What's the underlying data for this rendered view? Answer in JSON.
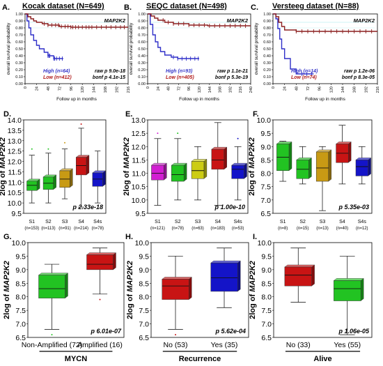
{
  "colors": {
    "high": "#2e2ec8",
    "low": "#8b1e1e",
    "high_text": "#3535c8",
    "low_text": "#b01818",
    "green": "#22c322",
    "red": "#c81414",
    "blue": "#1414c8",
    "olive": "#c89a14",
    "magenta": "#d21ed2",
    "yellow": "#cccc14",
    "cyan_line": "#9ee8f0"
  },
  "chart_data": [
    {
      "type": "line",
      "panel": "A.",
      "title": "Kocak dataset (N=649)",
      "gene": "MAP2K2",
      "ylabel": "overall survival probability",
      "xlabel": "Follow up in months",
      "xticks": [
        "0",
        "24",
        "48",
        "72",
        "96",
        "120",
        "144",
        "168",
        "192",
        "216"
      ],
      "yticks": [
        "0.00",
        "0.10",
        "0.20",
        "0.30",
        "0.40",
        "0.50",
        "0.60",
        "0.70",
        "0.80",
        "0.90",
        "1.00"
      ],
      "xlim": [
        0,
        216
      ],
      "ylim": [
        0,
        1
      ],
      "series": [
        {
          "name": "High (n=64)",
          "key": "high",
          "points": [
            [
              0,
              1.0
            ],
            [
              4,
              0.9
            ],
            [
              8,
              0.8
            ],
            [
              12,
              0.7
            ],
            [
              18,
              0.62
            ],
            [
              24,
              0.55
            ],
            [
              30,
              0.5
            ],
            [
              40,
              0.45
            ],
            [
              48,
              0.4
            ],
            [
              60,
              0.36
            ],
            [
              80,
              0.36
            ]
          ],
          "censor": [
            48,
            50,
            52,
            60,
            62,
            66,
            72,
            78
          ]
        },
        {
          "name": "Low (n=412)",
          "key": "low",
          "points": [
            [
              0,
              1.0
            ],
            [
              6,
              0.96
            ],
            [
              12,
              0.93
            ],
            [
              18,
              0.9
            ],
            [
              24,
              0.88
            ],
            [
              36,
              0.86
            ],
            [
              48,
              0.84
            ],
            [
              72,
              0.82
            ],
            [
              96,
              0.81
            ],
            [
              216,
              0.81
            ]
          ],
          "censor": [
            40,
            48,
            56,
            64,
            70,
            76,
            84,
            90,
            96,
            100,
            106,
            112,
            120,
            128,
            134,
            140,
            150,
            160,
            170,
            180,
            190,
            200,
            208
          ]
        }
      ],
      "legend": [
        {
          "label": "High (n=64)",
          "stat": "raw p 9.0e-18",
          "key": "high"
        },
        {
          "label": "Low (n=412)",
          "stat": "bonf p 4.1e-15",
          "key": "low"
        }
      ]
    },
    {
      "type": "line",
      "panel": "B.",
      "title": "SEQC dataset (N=498)",
      "gene": "MAP2K2",
      "ylabel": "overall survival probability",
      "xlabel": "Follow up in months",
      "xticks": [
        "0",
        "24",
        "48",
        "72",
        "96",
        "120",
        "144",
        "168",
        "192",
        "216",
        "240"
      ],
      "yticks": [
        "0.00",
        "0.10",
        "0.20",
        "0.30",
        "0.40",
        "0.50",
        "0.60",
        "0.70",
        "0.80",
        "0.90",
        "1.00"
      ],
      "xlim": [
        0,
        240
      ],
      "ylim": [
        0,
        1
      ],
      "series": [
        {
          "name": "High (n=93)",
          "key": "high",
          "points": [
            [
              0,
              1.0
            ],
            [
              6,
              0.85
            ],
            [
              12,
              0.7
            ],
            [
              18,
              0.6
            ],
            [
              24,
              0.52
            ],
            [
              30,
              0.46
            ],
            [
              40,
              0.41
            ],
            [
              55,
              0.38
            ],
            [
              70,
              0.36
            ],
            [
              120,
              0.36
            ]
          ],
          "censor": [
            60,
            70,
            80,
            90,
            100,
            110,
            118
          ]
        },
        {
          "name": "Low (n=405)",
          "key": "low",
          "points": [
            [
              0,
              1.0
            ],
            [
              8,
              0.97
            ],
            [
              16,
              0.94
            ],
            [
              24,
              0.91
            ],
            [
              40,
              0.88
            ],
            [
              60,
              0.86
            ],
            [
              96,
              0.84
            ],
            [
              140,
              0.83
            ],
            [
              240,
              0.83
            ]
          ],
          "censor": [
            36,
            48,
            60,
            72,
            84,
            96,
            108,
            120,
            132,
            144,
            156,
            168,
            180,
            192,
            204,
            216,
            228
          ]
        }
      ],
      "legend": [
        {
          "label": "High (n=93)",
          "stat": "raw p 1.1e-21",
          "key": "high"
        },
        {
          "label": "Low (n=405)",
          "stat": "bonf p 5.3e-19",
          "key": "low"
        }
      ]
    },
    {
      "type": "line",
      "panel": "C.",
      "title": "Versteeg dataset (N=88)",
      "gene": "MAP2K2",
      "ylabel": "overall survival probability",
      "xlabel": "Follow up in months",
      "xticks": [
        "0",
        "24",
        "48",
        "72",
        "96",
        "120",
        "144",
        "168",
        "192",
        "216"
      ],
      "yticks": [
        "0.00",
        "0.10",
        "0.20",
        "0.30",
        "0.40",
        "0.50",
        "0.60",
        "0.70",
        "0.80",
        "0.90",
        "1.00"
      ],
      "xlim": [
        0,
        216
      ],
      "ylim": [
        0,
        1
      ],
      "series": [
        {
          "name": "High (n=14)",
          "key": "high",
          "points": [
            [
              0,
              1.0
            ],
            [
              6,
              0.93
            ],
            [
              10,
              0.79
            ],
            [
              14,
              0.64
            ],
            [
              18,
              0.5
            ],
            [
              24,
              0.36
            ],
            [
              36,
              0.21
            ],
            [
              48,
              0.14
            ],
            [
              84,
              0.14
            ]
          ],
          "censor": [
            60,
            70,
            80
          ]
        },
        {
          "name": "Low (n=74)",
          "key": "low",
          "points": [
            [
              0,
              1.0
            ],
            [
              6,
              0.96
            ],
            [
              12,
              0.88
            ],
            [
              18,
              0.82
            ],
            [
              24,
              0.77
            ],
            [
              48,
              0.75
            ],
            [
              216,
              0.75
            ]
          ],
          "censor": [
            48,
            60,
            72,
            84,
            96,
            108,
            120,
            132,
            144,
            156,
            168,
            180,
            192,
            204
          ]
        }
      ],
      "legend": [
        {
          "label": "High (n=14)",
          "stat": "raw p 1.2e-06",
          "key": "high"
        },
        {
          "label": "Low (n=74)",
          "stat": "bonf p 8.3e-05",
          "key": "low"
        }
      ]
    },
    {
      "type": "box",
      "panel": "D.",
      "ylabel_prefix": "2log of ",
      "ylabel_gene": "MAP2K2",
      "ylim": [
        9.5,
        14.0
      ],
      "yticks": [
        "9.5",
        "10.0",
        "10.5",
        "11.0",
        "11.5",
        "12.0",
        "12.5",
        "13.0",
        "13.5",
        "14.0"
      ],
      "pvalue": "p 2.33e-18",
      "boxes": [
        {
          "label": "S1",
          "n": "(n=153)",
          "color": "green",
          "min": 10.0,
          "q1": 10.6,
          "median": 10.85,
          "q3": 11.05,
          "max": 12.3,
          "outliers": [
            12.6
          ]
        },
        {
          "label": "S2",
          "n": "(n=113)",
          "color": "green",
          "min": 10.0,
          "q1": 10.65,
          "median": 10.95,
          "q3": 11.25,
          "max": 12.4,
          "outliers": [
            12.6
          ]
        },
        {
          "label": "S3",
          "n": "(n=91)",
          "color": "olive",
          "min": 10.2,
          "q1": 10.75,
          "median": 11.15,
          "q3": 11.55,
          "max": 12.6,
          "outliers": [
            12.9
          ]
        },
        {
          "label": "S4",
          "n": "(n=214)",
          "color": "red",
          "min": 9.8,
          "q1": 11.35,
          "median": 11.8,
          "q3": 12.2,
          "max": 13.6,
          "outliers": [
            13.8
          ]
        },
        {
          "label": "S4s",
          "n": "(n=78)",
          "color": "blue",
          "min": 10.0,
          "q1": 10.8,
          "median": 11.15,
          "q3": 11.45,
          "max": 12.5,
          "outliers": []
        }
      ]
    },
    {
      "type": "box",
      "panel": "E.",
      "ylabel_prefix": "2log of ",
      "ylabel_gene": "MAP2K2",
      "ylim": [
        9.5,
        13.0
      ],
      "yticks": [
        "9.5",
        "10.0",
        "10.5",
        "11.0",
        "11.5",
        "12.0",
        "12.5",
        "13.0"
      ],
      "pvalue": "p 1.00e-10",
      "boxes": [
        {
          "label": "S1",
          "n": "(n=121)",
          "color": "magenta",
          "min": 9.8,
          "q1": 10.75,
          "median": 11.0,
          "q3": 11.3,
          "max": 12.3,
          "outliers": [
            12.5
          ]
        },
        {
          "label": "S2",
          "n": "(n=78)",
          "color": "green",
          "min": 10.0,
          "q1": 10.7,
          "median": 10.95,
          "q3": 11.3,
          "max": 12.3,
          "outliers": [
            12.5
          ]
        },
        {
          "label": "S3",
          "n": "(n=63)",
          "color": "yellow",
          "min": 10.0,
          "q1": 10.8,
          "median": 11.1,
          "q3": 11.45,
          "max": 12.0,
          "outliers": []
        },
        {
          "label": "S4",
          "n": "(n=183)",
          "color": "red",
          "min": 9.8,
          "q1": 11.15,
          "median": 11.5,
          "q3": 11.9,
          "max": 12.9,
          "outliers": []
        },
        {
          "label": "S4s",
          "n": "(n=53)",
          "color": "blue",
          "min": 10.0,
          "q1": 10.8,
          "median": 11.15,
          "q3": 11.3,
          "max": 12.0,
          "outliers": [
            12.3
          ]
        }
      ]
    },
    {
      "type": "box",
      "panel": "F.",
      "ylabel_prefix": "2log of ",
      "ylabel_gene": "MAP2K2",
      "ylim": [
        6.5,
        10.0
      ],
      "yticks": [
        "6.5",
        "7.0",
        "7.5",
        "8.0",
        "8.5",
        "9.0",
        "9.5",
        "10.0"
      ],
      "pvalue": "p 5.35e-03",
      "boxes": [
        {
          "label": "S1",
          "n": "(n=8)",
          "color": "green",
          "min": 7.7,
          "q1": 8.1,
          "median": 8.6,
          "q3": 9.1,
          "max": 9.2,
          "outliers": []
        },
        {
          "label": "S2",
          "n": "(n=15)",
          "color": "green",
          "min": 7.6,
          "q1": 7.8,
          "median": 8.15,
          "q3": 8.5,
          "max": 9.0,
          "outliers": []
        },
        {
          "label": "S3",
          "n": "(n=13)",
          "color": "olive",
          "min": 6.6,
          "q1": 7.7,
          "median": 8.2,
          "q3": 8.8,
          "max": 9.0,
          "outliers": []
        },
        {
          "label": "S4",
          "n": "(n=40)",
          "color": "red",
          "min": 7.6,
          "q1": 8.4,
          "median": 8.75,
          "q3": 9.1,
          "max": 9.8,
          "outliers": []
        },
        {
          "label": "S4s",
          "n": "(n=12)",
          "color": "blue",
          "min": 7.6,
          "q1": 7.9,
          "median": 8.25,
          "q3": 8.5,
          "max": 9.0,
          "outliers": []
        }
      ]
    },
    {
      "type": "box",
      "panel": "G.",
      "ylabel_prefix": "2log of ",
      "ylabel_gene": "MAP2K2",
      "ylim": [
        6.5,
        10.0
      ],
      "yticks": [
        "6.5",
        "7.0",
        "7.5",
        "8.0",
        "8.5",
        "9.0",
        "9.5",
        "10.0"
      ],
      "pvalue": "p 6.01e-07",
      "group_label": "MYCN",
      "boxes": [
        {
          "label": "Non-Amplified (72)",
          "color": "green",
          "min": 6.8,
          "q1": 7.95,
          "median": 8.3,
          "q3": 8.8,
          "max": 9.2,
          "outliers": [
            6.6
          ]
        },
        {
          "label": "Amplified (16)",
          "color": "red",
          "min": 8.1,
          "q1": 9.0,
          "median": 9.2,
          "q3": 9.55,
          "max": 9.8,
          "outliers": [
            7.9
          ]
        }
      ]
    },
    {
      "type": "box",
      "panel": "H.",
      "ylabel_prefix": "2log of ",
      "ylabel_gene": "MAP2K2",
      "ylim": [
        6.5,
        10.0
      ],
      "yticks": [
        "6.5",
        "7.0",
        "7.5",
        "8.0",
        "8.5",
        "9.0",
        "9.5",
        "10.0"
      ],
      "pvalue": "p 5.62e-04",
      "group_label": "Recurrence",
      "boxes": [
        {
          "label": "No (53)",
          "color": "red",
          "min": 6.8,
          "q1": 7.9,
          "median": 8.4,
          "q3": 8.65,
          "max": 9.5,
          "outliers": [
            6.6
          ]
        },
        {
          "label": "Yes (35)",
          "color": "blue",
          "min": 7.6,
          "q1": 8.2,
          "median": 8.7,
          "q3": 9.25,
          "max": 9.8,
          "outliers": []
        }
      ]
    },
    {
      "type": "box",
      "panel": "I.",
      "ylabel_prefix": "2log of ",
      "ylabel_gene": "MAP2K2",
      "ylim": [
        6.5,
        10.0
      ],
      "yticks": [
        "6.5",
        "7.0",
        "7.5",
        "8.0",
        "8.5",
        "9.0",
        "9.5",
        "10.0"
      ],
      "pvalue": "p 1.06e-05",
      "group_label": "Alive",
      "boxes": [
        {
          "label": "No (33)",
          "color": "red",
          "min": 7.8,
          "q1": 8.4,
          "median": 8.8,
          "q3": 9.1,
          "max": 9.8,
          "outliers": []
        },
        {
          "label": "Yes (55)",
          "color": "green",
          "min": 6.6,
          "q1": 7.85,
          "median": 8.3,
          "q3": 8.6,
          "max": 9.5,
          "outliers": []
        }
      ]
    }
  ]
}
